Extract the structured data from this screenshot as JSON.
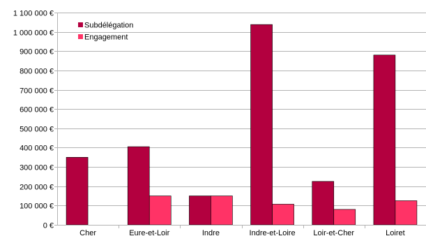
{
  "chart_data": {
    "type": "bar",
    "title": "",
    "xlabel": "",
    "ylabel": "",
    "categories": [
      "Cher",
      "Eure-et-Loir",
      "Indre",
      "Indre-et-Loire",
      "Loir-et-Cher",
      "Loiret"
    ],
    "series": [
      {
        "name": "Subdélégation",
        "color": "#b3003f",
        "values": [
          350000,
          405000,
          150000,
          1038000,
          225000,
          880000
        ]
      },
      {
        "name": "Engagement",
        "color": "#ff3366",
        "values": [
          0,
          150000,
          150000,
          107000,
          80000,
          125000
        ]
      }
    ],
    "ylim": [
      0,
      1100000
    ],
    "yticks": [
      0,
      100000,
      200000,
      300000,
      400000,
      500000,
      600000,
      700000,
      800000,
      900000,
      1000000,
      1100000
    ],
    "ytick_labels": [
      "0 €",
      "100 000 €",
      "200 000 €",
      "300 000 €",
      "400 000 €",
      "500 000 €",
      "600 000 €",
      "700 000 €",
      "800 000 €",
      "900 000 €",
      "1 000 000 €",
      "1 100 000 €"
    ],
    "grid": true,
    "legend_position": "top-left"
  }
}
